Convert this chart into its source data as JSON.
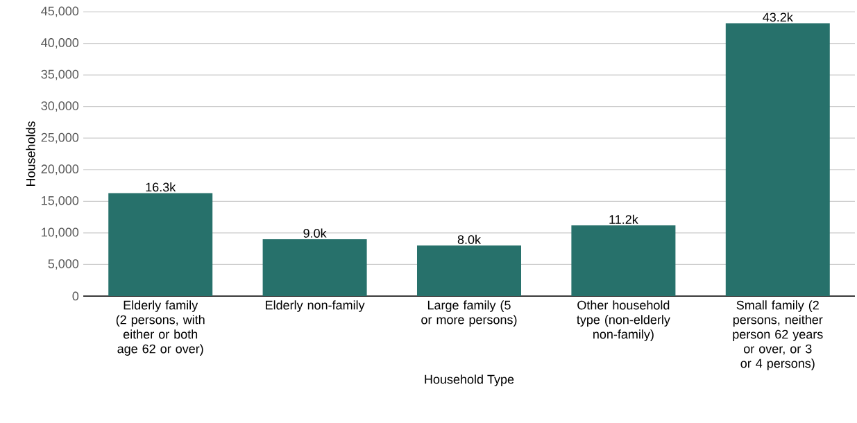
{
  "chart_data": {
    "type": "bar",
    "categories": [
      "Elderly family (2 persons, with either or both age 62 or over)",
      "Elderly non-family",
      "Large family (5 or more persons)",
      "Other household type (non-elderly non-family)",
      "Small family (2 persons, neither person 62 years or over, or 3 or 4 persons)"
    ],
    "values": [
      16300,
      9000,
      8000,
      11200,
      43200
    ],
    "value_labels": [
      "16.3k",
      "9.0k",
      "8.0k",
      "11.2k",
      "43.2k"
    ],
    "color": "#27716b",
    "xlabel": "Household Type",
    "ylabel": "Households",
    "ylim": [
      0,
      45000
    ],
    "yticks": [
      0,
      {
        "value": 5000,
        "label": "5,000"
      },
      {
        "value": 10000,
        "label": "10,000"
      },
      {
        "value": 15000,
        "label": "15,000"
      },
      {
        "value": 20000,
        "label": "20,000"
      },
      {
        "value": 25000,
        "label": "25,000"
      },
      {
        "value": 30000,
        "label": "30,000"
      },
      {
        "value": 35000,
        "label": "35,000"
      },
      {
        "value": 40000,
        "label": "40,000"
      },
      {
        "value": 45000,
        "label": "45,000"
      }
    ],
    "grid": "y"
  }
}
